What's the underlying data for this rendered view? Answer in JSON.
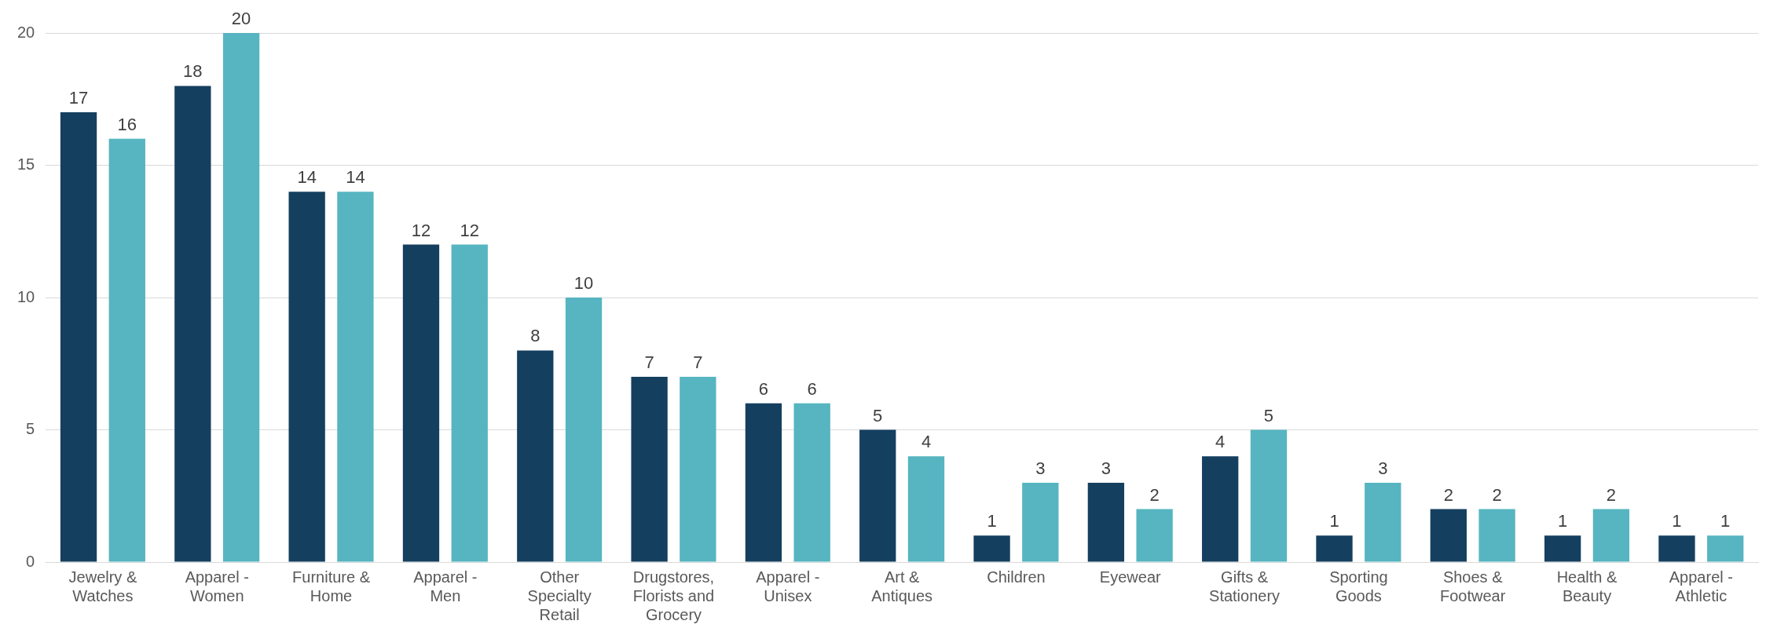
{
  "chart_data": {
    "type": "bar",
    "categories": [
      "Jewelry & Watches",
      "Apparel - Women",
      "Furniture & Home",
      "Apparel - Men",
      "Other Specialty Retail",
      "Drugstores, Florists and Grocery",
      "Apparel - Unisex",
      "Art & Antiques",
      "Children",
      "Eyewear",
      "Gifts & Stationery",
      "Sporting Goods",
      "Shoes & Footwear",
      "Health & Beauty",
      "Apparel - Athletic"
    ],
    "series": [
      {
        "color": "#153f5f",
        "values": [
          17,
          18,
          14,
          12,
          8,
          7,
          6,
          5,
          1,
          3,
          4,
          1,
          2,
          1,
          1
        ]
      },
      {
        "color": "#56b5c0",
        "values": [
          16,
          20,
          14,
          12,
          10,
          7,
          6,
          4,
          3,
          2,
          5,
          3,
          2,
          2,
          1
        ]
      }
    ],
    "ylim": [
      0,
      20
    ],
    "yticks": [
      0,
      5,
      10,
      15,
      20
    ],
    "grid": "y",
    "data_labels": true
  }
}
